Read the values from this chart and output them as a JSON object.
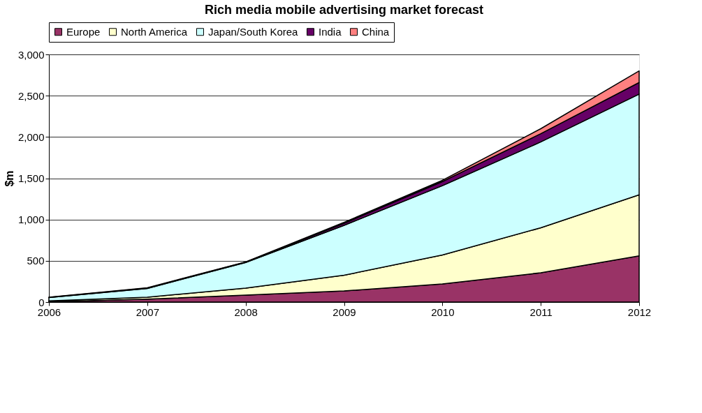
{
  "chart_data": {
    "type": "area",
    "title": "Rich media mobile advertising market forecast",
    "ylabel": "$m",
    "stacked": true,
    "x": [
      2006,
      2007,
      2008,
      2009,
      2010,
      2011,
      2012
    ],
    "xlim": [
      2006,
      2012
    ],
    "xticks": [
      2006,
      2007,
      2008,
      2009,
      2010,
      2011,
      2012
    ],
    "ylim": [
      0,
      3000
    ],
    "yticks": [
      0,
      500,
      {
        "value": 1000,
        "label": "1,000"
      },
      {
        "value": 1500,
        "label": "1,500"
      },
      {
        "value": 2000,
        "label": "2,000"
      },
      {
        "value": 2500,
        "label": "2,500"
      },
      {
        "value": 3000,
        "label": "3,000"
      }
    ],
    "grid": "y",
    "legend": "top",
    "series": [
      {
        "name": "Europe",
        "color": "#993366",
        "values": [
          5,
          35,
          85,
          135,
          220,
          355,
          560
        ]
      },
      {
        "name": "North America",
        "color": "#ffffcc",
        "values": [
          10,
          25,
          85,
          190,
          350,
          545,
          740
        ]
      },
      {
        "name": "Japan/South Korea",
        "color": "#ccffff",
        "values": [
          40,
          105,
          310,
          605,
          840,
          1040,
          1220
        ]
      },
      {
        "name": "India",
        "color": "#660066",
        "values": [
          3,
          5,
          5,
          25,
          50,
          100,
          140
        ]
      },
      {
        "name": "China",
        "color": "#ff8080",
        "values": [
          2,
          3,
          2,
          10,
          15,
          60,
          140
        ]
      }
    ]
  }
}
